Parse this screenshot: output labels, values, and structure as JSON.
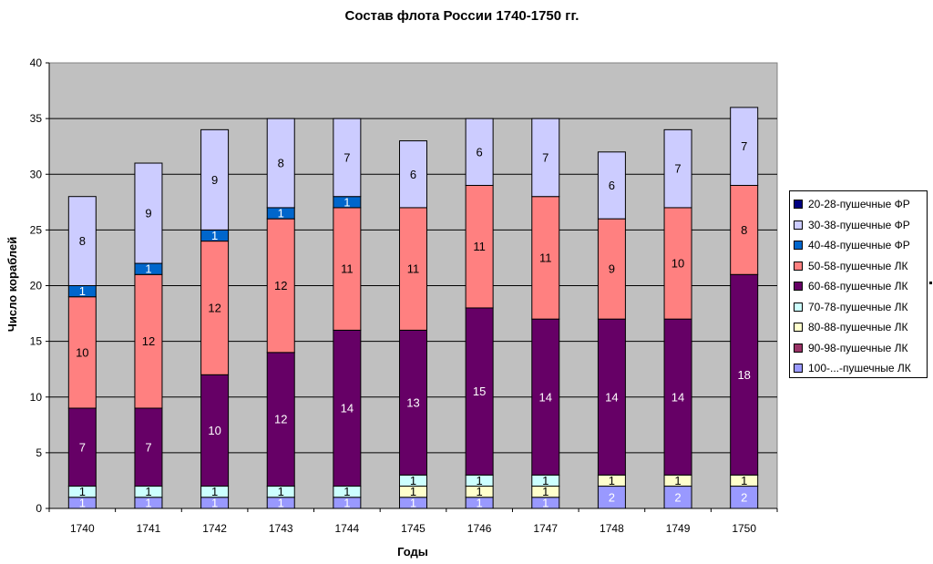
{
  "chart_data": {
    "type": "bar",
    "stacked": true,
    "title": "Состав флота России 1740-1750 гг.",
    "xlabel": "Годы",
    "ylabel": "Число кораблей",
    "ylim": [
      0,
      40
    ],
    "yticks": [
      "0",
      "5",
      "10",
      "15",
      "20",
      "25",
      "30",
      "35",
      "40"
    ],
    "grid": true,
    "legend_position": "right",
    "categories": [
      "1740",
      "1741",
      "1742",
      "1743",
      "1744",
      "1745",
      "1746",
      "1747",
      "1748",
      "1749",
      "1750"
    ],
    "series": [
      {
        "name": "100-...-пушечные ЛК",
        "color": "#9999ff",
        "values": [
          1,
          1,
          1,
          1,
          1,
          1,
          1,
          1,
          2,
          2,
          2
        ]
      },
      {
        "name": "90-98-пушечные ЛК",
        "color": "#993366",
        "values": [
          0,
          0,
          0,
          0,
          0,
          0,
          0,
          0,
          0,
          0,
          0
        ]
      },
      {
        "name": "80-88-пушечные ЛК",
        "color": "#ffffcc",
        "values": [
          0,
          0,
          0,
          0,
          0,
          1,
          1,
          1,
          1,
          1,
          1
        ]
      },
      {
        "name": "70-78-пушечные ЛК",
        "color": "#ccffff",
        "values": [
          1,
          1,
          1,
          1,
          1,
          1,
          1,
          1,
          0,
          0,
          0
        ]
      },
      {
        "name": "60-68-пушечные ЛК",
        "color": "#660066",
        "values": [
          7,
          7,
          10,
          12,
          14,
          13,
          15,
          14,
          14,
          14,
          18
        ]
      },
      {
        "name": "50-58-пушечные ЛК",
        "color": "#ff8080",
        "values": [
          10,
          12,
          12,
          12,
          11,
          11,
          11,
          11,
          9,
          10,
          8
        ]
      },
      {
        "name": "40-48-пушечные ФР",
        "color": "#0066cc",
        "values": [
          1,
          1,
          1,
          1,
          1,
          0,
          0,
          0,
          0,
          0,
          0
        ]
      },
      {
        "name": "30-38-пушечные ФР",
        "color": "#ccccff",
        "values": [
          8,
          9,
          9,
          8,
          7,
          6,
          6,
          7,
          6,
          7,
          7
        ]
      },
      {
        "name": "20-28-пушечные ФР",
        "color": "#000080",
        "values": [
          0,
          0,
          0,
          0,
          0,
          0,
          0,
          0,
          0,
          0,
          0
        ]
      }
    ],
    "legend_order": [
      "20-28-пушечные ФР",
      "30-38-пушечные ФР",
      "40-48-пушечные ФР",
      "50-58-пушечные ЛК",
      "60-68-пушечные ЛК",
      "70-78-пушечные ЛК",
      "80-88-пушечные ЛК",
      "90-98-пушечные ЛК",
      "100-...-пушечные ЛК"
    ],
    "plot_background": "#c0c0c0"
  }
}
